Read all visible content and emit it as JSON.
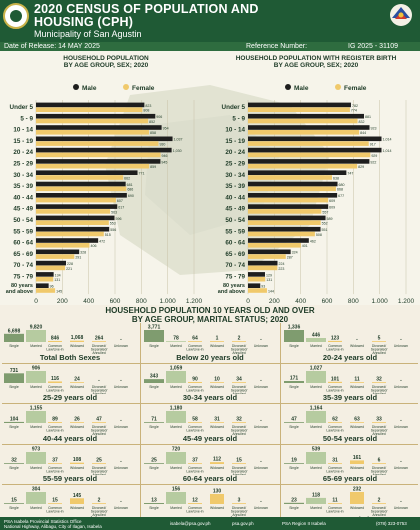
{
  "header": {
    "title_line1": "2020 CENSUS OF POPULATION AND",
    "title_line2": "HOUSING (CPH)",
    "subtitle": "Municipality of San Agustin"
  },
  "date_bar": {
    "release": "Date of Release: 14 MAY 2025",
    "ref_label": "Reference Number:",
    "ref_value": "IG 2025 - 31109"
  },
  "legend": {
    "male": "Male",
    "female": "Female"
  },
  "colors": {
    "male": "#1e1e1e",
    "female": "#f0c96b",
    "single": "#7f9c6f",
    "married": "#b6cba0",
    "dark_green": "#1f5a35"
  },
  "chart_data": [
    {
      "type": "bar",
      "orientation": "horizontal",
      "title_line1": "HOUSEHOLD POPULATION",
      "title_line2": "BY AGE GROUP, SEX; 2020",
      "categories": [
        "Under 5",
        "5 - 9",
        "10 - 14",
        "15 - 19",
        "20 - 24",
        "25 - 29",
        "30 - 34",
        "35 - 39",
        "40 - 44",
        "45 - 49",
        "50 - 54",
        "55 - 59",
        "60 - 64",
        "65 - 69",
        "70 - 74",
        "75 - 79",
        "80 years and above"
      ],
      "series": [
        {
          "name": "Male",
          "values": [
            823,
            906,
            954,
            1037,
            1030,
            945,
            771,
            681,
            690,
            617,
            596,
            556,
            472,
            328,
            228,
            134,
            96
          ]
        },
        {
          "name": "Female",
          "values": [
            808,
            852,
            858,
            930,
            946,
            859,
            662,
            686,
            607,
            563,
            553,
            515,
            406,
            291,
            221,
            131,
            145
          ]
        }
      ],
      "xlim": [
        0,
        1200
      ],
      "xticks": [
        "0",
        "200",
        "400",
        "600",
        "800",
        "1,000",
        "1,200"
      ]
    },
    {
      "type": "bar",
      "orientation": "horizontal",
      "title_line1": "HOUSEHOLD POPULATION WITH REGISTER BIRTH",
      "title_line2": "BY AGE GROUP, SEX; 2020",
      "categories": [
        "Under 5",
        "5 - 9",
        "10 - 14",
        "15 - 19",
        "20 - 24",
        "25 - 29",
        "30 - 34",
        "35 - 39",
        "40 - 44",
        "45 - 49",
        "50 - 54",
        "55 - 59",
        "60 - 64",
        "65 - 69",
        "70 - 74",
        "75 - 79",
        "80 years and above"
      ],
      "series": [
        {
          "name": "Male",
          "values": [
            782,
            881,
            923,
            1014,
            1014,
            922,
            747,
            680,
            677,
            609,
            589,
            551,
            462,
            324,
            224,
            129,
            93
          ]
        },
        {
          "name": "Female",
          "values": [
            774,
            832,
            844,
            917,
            929,
            829,
            638,
            668,
            609,
            557,
            552,
            508,
            401,
            287,
            223,
            131,
            144
          ]
        }
      ],
      "xlim": [
        0,
        1200
      ],
      "xticks": [
        "0",
        "200",
        "400",
        "600",
        "800",
        "1,000",
        "1,200"
      ]
    },
    {
      "type": "bar",
      "title": "HOUSEHOLD POPULATION 10 YEARS OLD AND OVER",
      "subtitle": "BY AGE GROUP, MARITAL STATUS; 2020",
      "categories": [
        "Single",
        "Married",
        "Common Law/Live-in",
        "Widowed",
        "Divorced/ Separated/ Annulled",
        "Unknown"
      ],
      "panels": [
        {
          "label": "Total Both Sexes",
          "values": [
            6698,
            9820,
            846,
            1068,
            264,
            null
          ],
          "shown": [
            "6,698",
            "9,820",
            "846",
            "1,068",
            "264",
            "-"
          ]
        },
        {
          "label": "Below 20 years old",
          "values": [
            3771,
            78,
            64,
            1,
            2,
            null
          ],
          "shown": [
            "3,771",
            "78",
            "64",
            "1",
            "2",
            "-"
          ]
        },
        {
          "label": "20-24 years old",
          "values": [
            1336,
            446,
            123,
            null,
            5,
            null
          ],
          "shown": [
            "1,336",
            "446",
            "123",
            "-",
            "5",
            "-"
          ]
        },
        {
          "label": "25-29 years old",
          "values": [
            731,
            906,
            116,
            24,
            null,
            null
          ],
          "shown": [
            "731",
            "906",
            "116",
            "24",
            "-",
            "-"
          ]
        },
        {
          "label": "30-34 years old",
          "values": [
            343,
            1059,
            90,
            10,
            34,
            null
          ],
          "shown": [
            "343",
            "1,059",
            "90",
            "10",
            "34",
            "-"
          ]
        },
        {
          "label": "35-39 years old",
          "values": [
            171,
            1027,
            101,
            11,
            32,
            null
          ],
          "shown": [
            "171",
            "1,027",
            "101",
            "11",
            "32",
            "-"
          ]
        },
        {
          "label": "40-44 years old",
          "values": [
            104,
            1155,
            89,
            26,
            47,
            null
          ],
          "shown": [
            "104",
            "1,155",
            "89",
            "26",
            "47",
            "-"
          ]
        },
        {
          "label": "45-49 years old",
          "values": [
            71,
            1180,
            58,
            31,
            32,
            null
          ],
          "shown": [
            "71",
            "1,180",
            "58",
            "31",
            "32",
            "-"
          ]
        },
        {
          "label": "50-54 years old",
          "values": [
            47,
            1164,
            62,
            63,
            33,
            null
          ],
          "shown": [
            "47",
            "1,164",
            "62",
            "63",
            "33",
            "-"
          ]
        },
        {
          "label": "55-59 years old",
          "values": [
            32,
            973,
            37,
            108,
            25,
            null
          ],
          "shown": [
            "32",
            "973",
            "37",
            "108",
            "25",
            "-"
          ]
        },
        {
          "label": "60-64 years old",
          "values": [
            25,
            720,
            37,
            112,
            15,
            null
          ],
          "shown": [
            "25",
            "720",
            "37",
            "112",
            "15",
            "-"
          ]
        },
        {
          "label": "65-69 years old",
          "values": [
            19,
            539,
            31,
            161,
            6,
            null
          ],
          "shown": [
            "19",
            "539",
            "31",
            "161",
            "6",
            "-"
          ]
        },
        {
          "label": "70-74 years old",
          "values": [
            15,
            304,
            15,
            145,
            2,
            null
          ],
          "shown": [
            "15",
            "304",
            "15",
            "145",
            "2",
            "-"
          ]
        },
        {
          "label": "75-79 years old",
          "values": [
            13,
            156,
            12,
            130,
            3,
            null
          ],
          "shown": [
            "13",
            "156",
            "12",
            "130",
            "3",
            "-"
          ]
        },
        {
          "label": "80 years and above",
          "values": [
            23,
            118,
            11,
            232,
            2,
            null
          ],
          "shown": [
            "23",
            "118",
            "11",
            "232",
            "2",
            "-"
          ]
        }
      ]
    }
  ],
  "footer": {
    "office": "PSA Isabela Provincial Statistics Office",
    "address": "National Highway, Alibagu, City of Ilagan, Isabela",
    "email": "isabela@psa.gov.ph",
    "website": "psa.gov.ph",
    "fb": "PSA Region II Isabela",
    "phone": "(078) 323-0753"
  }
}
